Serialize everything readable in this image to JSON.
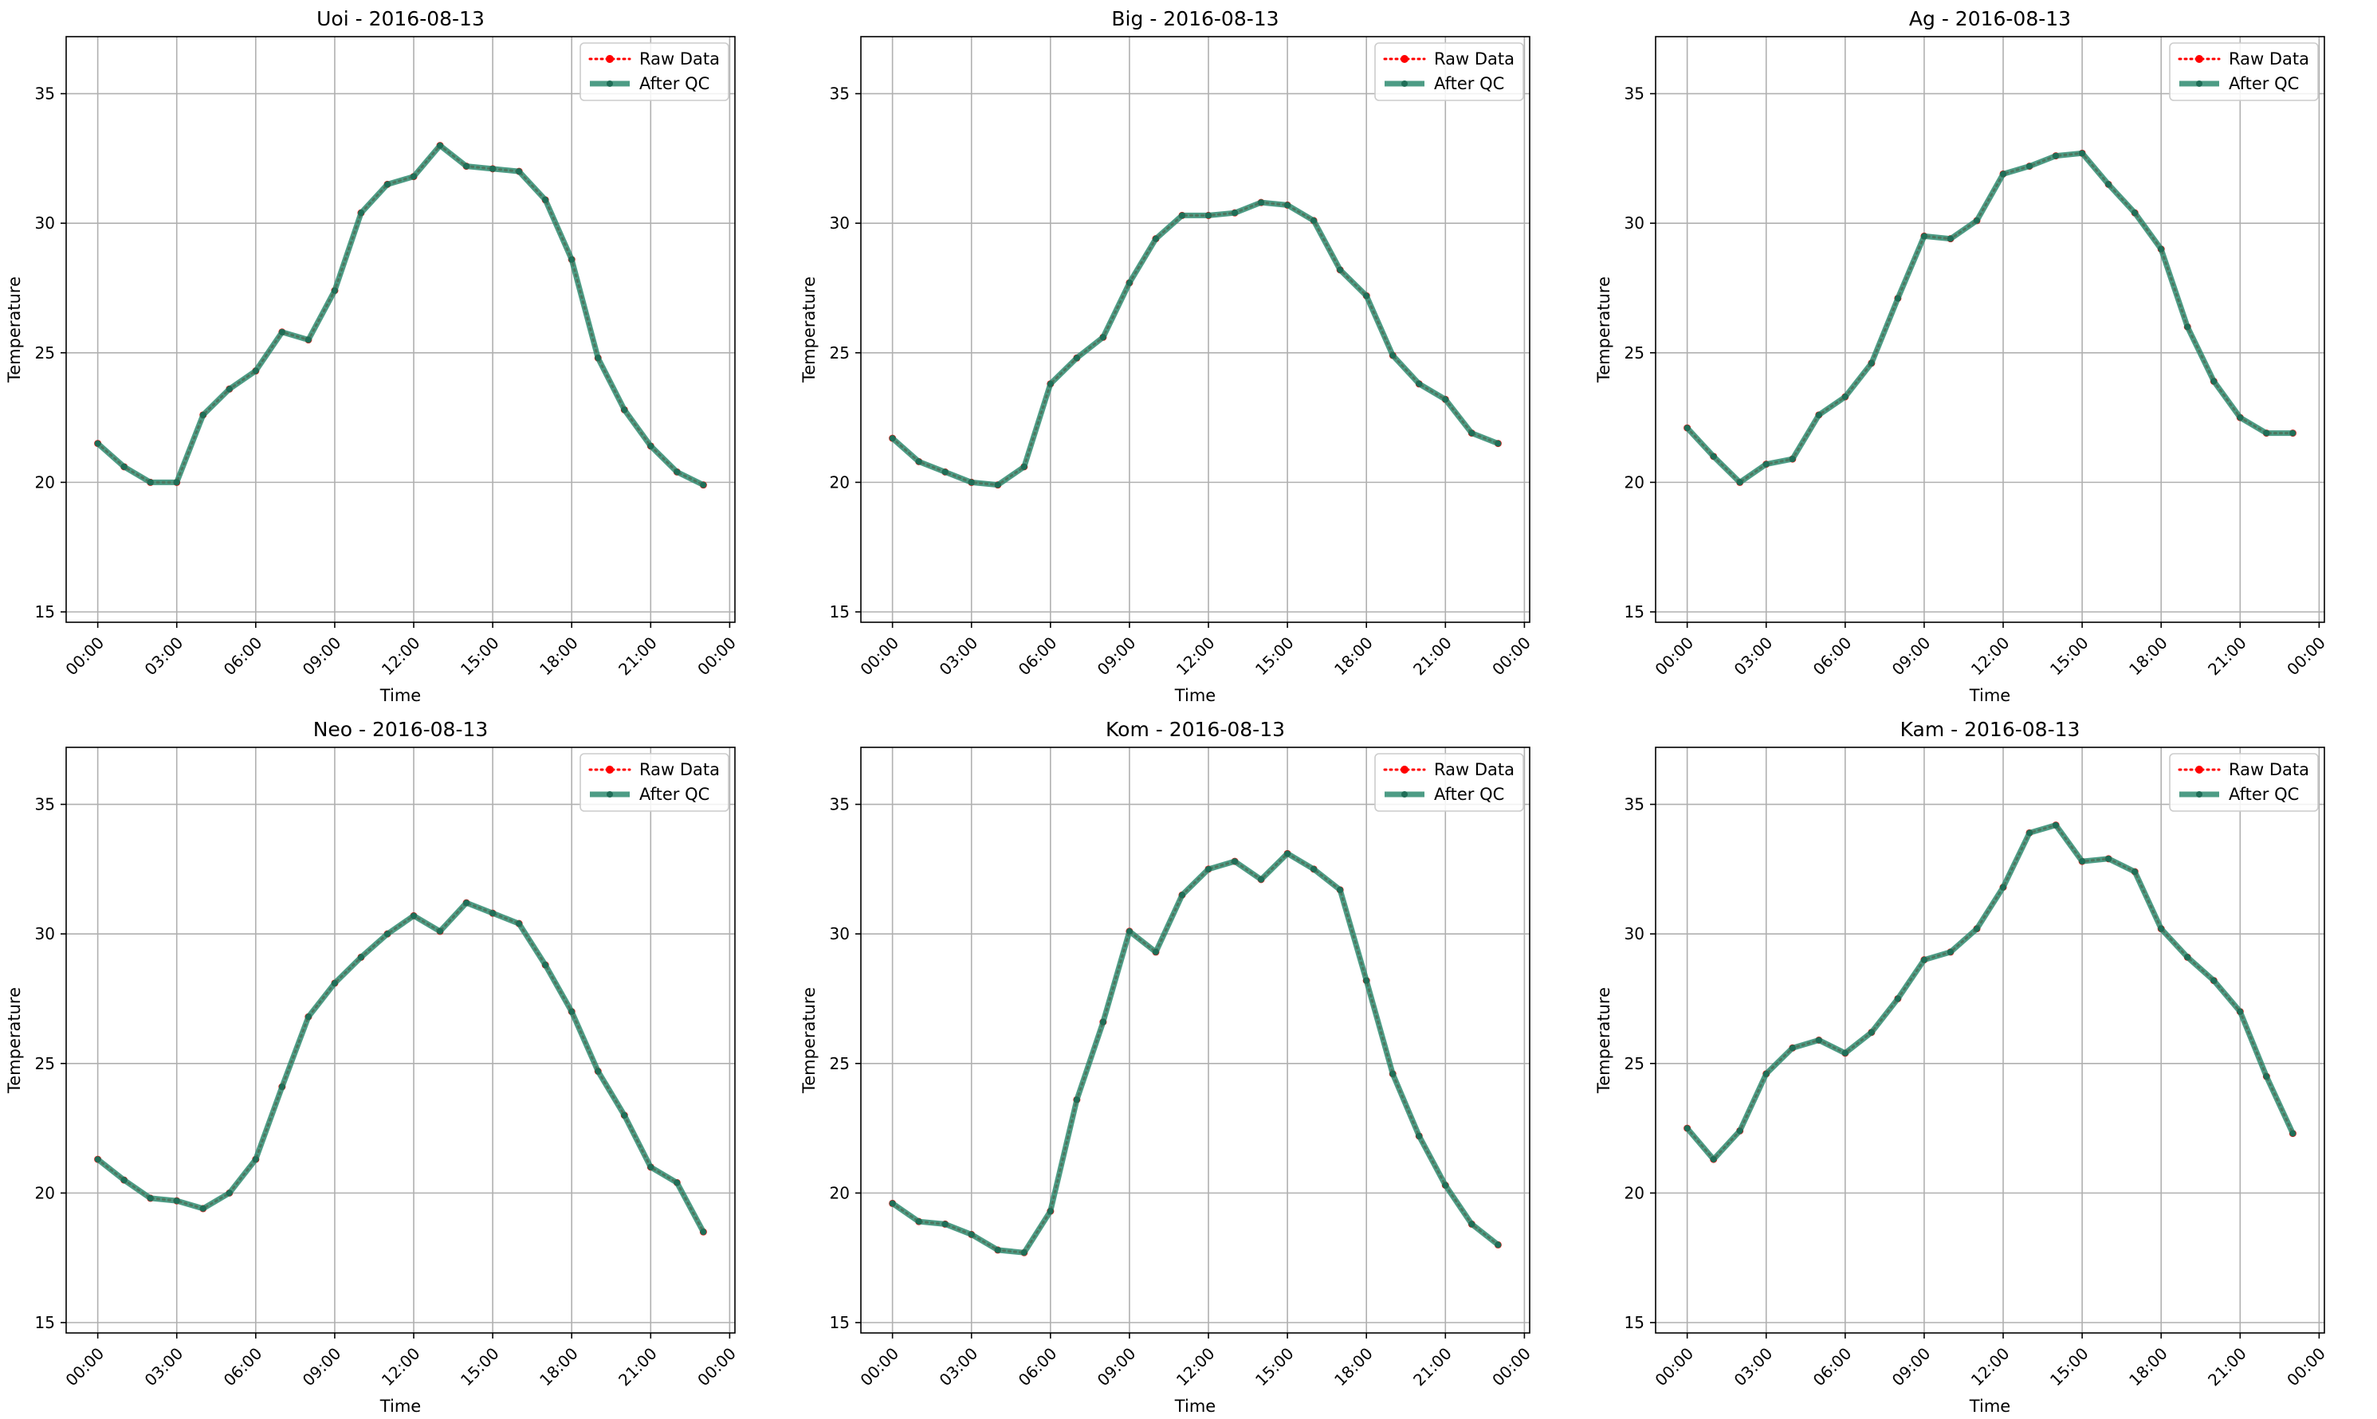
{
  "chart_data": [
    {
      "type": "line",
      "title": "Uoi - 2016-08-13",
      "xlabel": "Time",
      "ylabel": "Temperature",
      "xlim": [
        "2016-08-12 22:48",
        "2016-08-14 00:12"
      ],
      "ylim": [
        14.6,
        37.2
      ],
      "x_ticks": [
        "00:00",
        "03:00",
        "06:00",
        "09:00",
        "12:00",
        "15:00",
        "18:00",
        "21:00",
        "00:00"
      ],
      "y_ticks": [
        "15",
        "20",
        "25",
        "30",
        "35"
      ],
      "grid": true,
      "legend": "top-right",
      "x": [
        "00:00",
        "01:00",
        "02:00",
        "03:00",
        "04:00",
        "05:00",
        "06:00",
        "07:00",
        "08:00",
        "09:00",
        "10:00",
        "11:00",
        "12:00",
        "13:00",
        "14:00",
        "15:00",
        "16:00",
        "17:00",
        "18:00",
        "19:00",
        "20:00",
        "21:00",
        "22:00",
        "23:00"
      ],
      "series": [
        {
          "name": "Raw Data",
          "color": "#ff0000",
          "style": "dotted",
          "values": [
            21.5,
            20.6,
            20.0,
            20.0,
            22.6,
            23.6,
            24.3,
            25.8,
            25.5,
            27.4,
            30.4,
            31.5,
            31.8,
            33.0,
            32.2,
            32.1,
            32.0,
            30.9,
            28.6,
            24.8,
            22.8,
            21.4,
            20.4,
            19.9
          ]
        },
        {
          "name": "After QC",
          "color": "#2e8b70",
          "style": "solid",
          "values": [
            21.5,
            20.6,
            20.0,
            20.0,
            22.6,
            23.6,
            24.3,
            25.8,
            25.5,
            27.4,
            30.4,
            31.5,
            31.8,
            33.0,
            32.2,
            32.1,
            32.0,
            30.9,
            28.6,
            24.8,
            22.8,
            21.4,
            20.4,
            19.9
          ]
        }
      ]
    },
    {
      "type": "line",
      "title": "Big - 2016-08-13",
      "xlabel": "Time",
      "ylabel": "Temperature",
      "xlim": [
        "2016-08-12 22:48",
        "2016-08-14 00:12"
      ],
      "ylim": [
        14.6,
        37.2
      ],
      "x_ticks": [
        "00:00",
        "03:00",
        "06:00",
        "09:00",
        "12:00",
        "15:00",
        "18:00",
        "21:00",
        "00:00"
      ],
      "y_ticks": [
        "15",
        "20",
        "25",
        "30",
        "35"
      ],
      "grid": true,
      "legend": "top-right",
      "x": [
        "00:00",
        "01:00",
        "02:00",
        "03:00",
        "04:00",
        "05:00",
        "06:00",
        "07:00",
        "08:00",
        "09:00",
        "10:00",
        "11:00",
        "12:00",
        "13:00",
        "14:00",
        "15:00",
        "16:00",
        "17:00",
        "18:00",
        "19:00",
        "20:00",
        "21:00",
        "22:00",
        "23:00"
      ],
      "series": [
        {
          "name": "Raw Data",
          "color": "#ff0000",
          "style": "dotted",
          "values": [
            21.7,
            20.8,
            20.4,
            20.0,
            19.9,
            20.6,
            23.8,
            24.8,
            25.6,
            27.7,
            29.4,
            30.3,
            30.3,
            30.4,
            30.8,
            30.7,
            30.1,
            28.2,
            27.2,
            24.9,
            23.8,
            23.2,
            21.9,
            21.5
          ]
        },
        {
          "name": "After QC",
          "color": "#2e8b70",
          "style": "solid",
          "values": [
            21.7,
            20.8,
            20.4,
            20.0,
            19.9,
            20.6,
            23.8,
            24.8,
            25.6,
            27.7,
            29.4,
            30.3,
            30.3,
            30.4,
            30.8,
            30.7,
            30.1,
            28.2,
            27.2,
            24.9,
            23.8,
            23.2,
            21.9,
            21.5
          ]
        }
      ]
    },
    {
      "type": "line",
      "title": "Ag - 2016-08-13",
      "xlabel": "Time",
      "ylabel": "Temperature",
      "xlim": [
        "2016-08-12 22:48",
        "2016-08-14 00:12"
      ],
      "ylim": [
        14.6,
        37.2
      ],
      "x_ticks": [
        "00:00",
        "03:00",
        "06:00",
        "09:00",
        "12:00",
        "15:00",
        "18:00",
        "21:00",
        "00:00"
      ],
      "y_ticks": [
        "15",
        "20",
        "25",
        "30",
        "35"
      ],
      "grid": true,
      "legend": "top-right",
      "x": [
        "00:00",
        "01:00",
        "02:00",
        "03:00",
        "04:00",
        "05:00",
        "06:00",
        "07:00",
        "08:00",
        "09:00",
        "10:00",
        "11:00",
        "12:00",
        "13:00",
        "14:00",
        "15:00",
        "16:00",
        "17:00",
        "18:00",
        "19:00",
        "20:00",
        "21:00",
        "22:00",
        "23:00"
      ],
      "series": [
        {
          "name": "Raw Data",
          "color": "#ff0000",
          "style": "dotted",
          "values": [
            22.1,
            21.0,
            20.0,
            20.7,
            20.9,
            22.6,
            23.3,
            24.6,
            27.1,
            29.5,
            29.4,
            30.1,
            31.9,
            32.2,
            32.6,
            32.7,
            31.5,
            30.4,
            29.0,
            26.0,
            23.9,
            22.5,
            21.9,
            21.9
          ]
        },
        {
          "name": "After QC",
          "color": "#2e8b70",
          "style": "solid",
          "values": [
            22.1,
            21.0,
            20.0,
            20.7,
            20.9,
            22.6,
            23.3,
            24.6,
            27.1,
            29.5,
            29.4,
            30.1,
            31.9,
            32.2,
            32.6,
            32.7,
            31.5,
            30.4,
            29.0,
            26.0,
            23.9,
            22.5,
            21.9,
            21.9
          ]
        }
      ]
    },
    {
      "type": "line",
      "title": "Neo - 2016-08-13",
      "xlabel": "Time",
      "ylabel": "Temperature",
      "xlim": [
        "2016-08-12 22:48",
        "2016-08-14 00:12"
      ],
      "ylim": [
        14.6,
        37.2
      ],
      "x_ticks": [
        "00:00",
        "03:00",
        "06:00",
        "09:00",
        "12:00",
        "15:00",
        "18:00",
        "21:00",
        "00:00"
      ],
      "y_ticks": [
        "15",
        "20",
        "25",
        "30",
        "35"
      ],
      "grid": true,
      "legend": "top-right",
      "x": [
        "00:00",
        "01:00",
        "02:00",
        "03:00",
        "04:00",
        "05:00",
        "06:00",
        "07:00",
        "08:00",
        "09:00",
        "10:00",
        "11:00",
        "12:00",
        "13:00",
        "14:00",
        "15:00",
        "16:00",
        "17:00",
        "18:00",
        "19:00",
        "20:00",
        "21:00",
        "22:00",
        "23:00"
      ],
      "series": [
        {
          "name": "Raw Data",
          "color": "#ff0000",
          "style": "dotted",
          "values": [
            21.3,
            20.5,
            19.8,
            19.7,
            19.4,
            20.0,
            21.3,
            24.1,
            26.8,
            28.1,
            29.1,
            30.0,
            30.7,
            30.1,
            31.2,
            30.8,
            30.4,
            28.8,
            27.0,
            24.7,
            23.0,
            21.0,
            20.4,
            18.5
          ]
        },
        {
          "name": "After QC",
          "color": "#2e8b70",
          "style": "solid",
          "values": [
            21.3,
            20.5,
            19.8,
            19.7,
            19.4,
            20.0,
            21.3,
            24.1,
            26.8,
            28.1,
            29.1,
            30.0,
            30.7,
            30.1,
            31.2,
            30.8,
            30.4,
            28.8,
            27.0,
            24.7,
            23.0,
            21.0,
            20.4,
            18.5
          ]
        }
      ]
    },
    {
      "type": "line",
      "title": "Kom - 2016-08-13",
      "xlabel": "Time",
      "ylabel": "Temperature",
      "xlim": [
        "2016-08-12 22:48",
        "2016-08-14 00:12"
      ],
      "ylim": [
        14.6,
        37.2
      ],
      "x_ticks": [
        "00:00",
        "03:00",
        "06:00",
        "09:00",
        "12:00",
        "15:00",
        "18:00",
        "21:00",
        "00:00"
      ],
      "y_ticks": [
        "15",
        "20",
        "25",
        "30",
        "35"
      ],
      "grid": true,
      "legend": "top-right",
      "x": [
        "00:00",
        "01:00",
        "02:00",
        "03:00",
        "04:00",
        "05:00",
        "06:00",
        "07:00",
        "08:00",
        "09:00",
        "10:00",
        "11:00",
        "12:00",
        "13:00",
        "14:00",
        "15:00",
        "16:00",
        "17:00",
        "18:00",
        "19:00",
        "20:00",
        "21:00",
        "22:00",
        "23:00"
      ],
      "series": [
        {
          "name": "Raw Data",
          "color": "#ff0000",
          "style": "dotted",
          "values": [
            19.6,
            18.9,
            18.8,
            18.4,
            17.8,
            17.7,
            19.3,
            23.6,
            26.6,
            30.1,
            29.3,
            31.5,
            32.5,
            32.8,
            32.1,
            33.1,
            32.5,
            31.7,
            28.2,
            24.6,
            22.2,
            20.3,
            18.8,
            18.0
          ]
        },
        {
          "name": "After QC",
          "color": "#2e8b70",
          "style": "solid",
          "values": [
            19.6,
            18.9,
            18.8,
            18.4,
            17.8,
            17.7,
            19.3,
            23.6,
            26.6,
            30.1,
            29.3,
            31.5,
            32.5,
            32.8,
            32.1,
            33.1,
            32.5,
            31.7,
            28.2,
            24.6,
            22.2,
            20.3,
            18.8,
            18.0
          ]
        }
      ]
    },
    {
      "type": "line",
      "title": "Kam - 2016-08-13",
      "xlabel": "Time",
      "ylabel": "Temperature",
      "xlim": [
        "2016-08-12 22:48",
        "2016-08-14 00:12"
      ],
      "ylim": [
        14.6,
        37.2
      ],
      "x_ticks": [
        "00:00",
        "03:00",
        "06:00",
        "09:00",
        "12:00",
        "15:00",
        "18:00",
        "21:00",
        "00:00"
      ],
      "y_ticks": [
        "15",
        "20",
        "25",
        "30",
        "35"
      ],
      "grid": true,
      "legend": "top-right",
      "x": [
        "00:00",
        "01:00",
        "02:00",
        "03:00",
        "04:00",
        "05:00",
        "06:00",
        "07:00",
        "08:00",
        "09:00",
        "10:00",
        "11:00",
        "12:00",
        "13:00",
        "14:00",
        "15:00",
        "16:00",
        "17:00",
        "18:00",
        "19:00",
        "20:00",
        "21:00",
        "22:00",
        "23:00"
      ],
      "series": [
        {
          "name": "Raw Data",
          "color": "#ff0000",
          "style": "dotted",
          "values": [
            22.5,
            21.3,
            22.4,
            24.6,
            25.6,
            25.9,
            25.4,
            26.2,
            27.5,
            29.0,
            29.3,
            30.2,
            31.8,
            33.9,
            34.2,
            32.8,
            32.9,
            32.4,
            30.2,
            29.1,
            28.2,
            27.0,
            24.5,
            22.3
          ]
        },
        {
          "name": "After QC",
          "color": "#2e8b70",
          "style": "solid",
          "values": [
            22.5,
            21.3,
            22.4,
            24.6,
            25.6,
            25.9,
            25.4,
            26.2,
            27.5,
            29.0,
            29.3,
            30.2,
            31.8,
            33.9,
            34.2,
            32.8,
            32.9,
            32.4,
            30.2,
            29.1,
            28.2,
            27.0,
            24.5,
            22.3
          ]
        }
      ]
    }
  ]
}
